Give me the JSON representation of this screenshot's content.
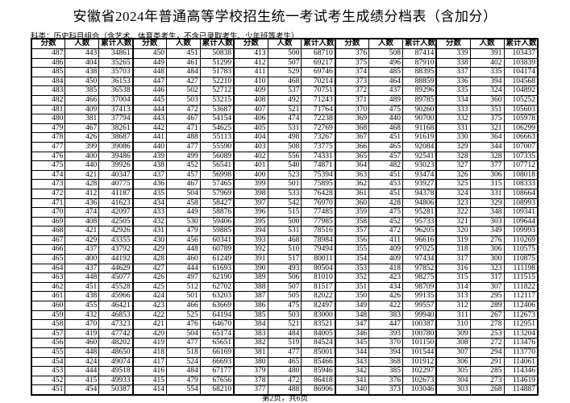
{
  "title": "安徽省2024年普通高等学校招生统一考试考生成绩分档表（含加分）",
  "subtitle": "科类：历史科目组合（含艺术、体育类考生，不含已录取考生、少年班等考生）",
  "headers": [
    "分数",
    "人数",
    "累计人数"
  ],
  "footer": "第2页，共6页",
  "groups": [
    [
      [
        487,
        443,
        34861
      ],
      [
        486,
        404,
        35265
      ],
      [
        485,
        438,
        35703
      ],
      [
        484,
        450,
        36153
      ],
      [
        483,
        385,
        36538
      ],
      [
        482,
        466,
        37004
      ],
      [
        481,
        409,
        37413
      ],
      [
        480,
        381,
        37794
      ],
      [
        479,
        467,
        38261
      ],
      [
        478,
        426,
        38687
      ],
      [
        477,
        399,
        39086
      ],
      [
        476,
        400,
        39486
      ],
      [
        475,
        440,
        39926
      ],
      [
        474,
        421,
        40347
      ],
      [
        473,
        428,
        40775
      ],
      [
        472,
        412,
        41187
      ],
      [
        471,
        436,
        41623
      ],
      [
        470,
        474,
        42097
      ],
      [
        469,
        408,
        42505
      ],
      [
        468,
        421,
        42926
      ],
      [
        467,
        429,
        43355
      ],
      [
        466,
        437,
        43792
      ],
      [
        465,
        400,
        44192
      ],
      [
        464,
        437,
        44629
      ],
      [
        463,
        448,
        45077
      ],
      [
        462,
        451,
        45528
      ],
      [
        461,
        438,
        45966
      ],
      [
        460,
        455,
        46421
      ],
      [
        459,
        432,
        46853
      ],
      [
        458,
        470,
        47323
      ],
      [
        457,
        419,
        47742
      ],
      [
        456,
        460,
        48202
      ],
      [
        455,
        448,
        48650
      ],
      [
        454,
        424,
        49074
      ],
      [
        453,
        444,
        49518
      ],
      [
        452,
        415,
        49933
      ],
      [
        451,
        454,
        50387
      ]
    ],
    [
      [
        450,
        451,
        50838
      ],
      [
        449,
        461,
        51299
      ],
      [
        448,
        484,
        51783
      ],
      [
        447,
        427,
        52210
      ],
      [
        446,
        502,
        52712
      ],
      [
        445,
        503,
        53215
      ],
      [
        444,
        472,
        53687
      ],
      [
        443,
        467,
        54154
      ],
      [
        442,
        471,
        54625
      ],
      [
        441,
        488,
        55113
      ],
      [
        440,
        477,
        55590
      ],
      [
        439,
        499,
        56089
      ],
      [
        438,
        452,
        56541
      ],
      [
        437,
        457,
        56998
      ],
      [
        436,
        467,
        57465
      ],
      [
        435,
        504,
        57969
      ],
      [
        434,
        458,
        58427
      ],
      [
        433,
        449,
        58876
      ],
      [
        432,
        530,
        59406
      ],
      [
        431,
        479,
        59885
      ],
      [
        430,
        456,
        60341
      ],
      [
        429,
        448,
        60789
      ],
      [
        428,
        460,
        61249
      ],
      [
        427,
        444,
        61693
      ],
      [
        426,
        497,
        62190
      ],
      [
        425,
        512,
        62702
      ],
      [
        424,
        501,
        63203
      ],
      [
        423,
        466,
        63669
      ],
      [
        422,
        525,
        64194
      ],
      [
        421,
        476,
        64670
      ],
      [
        420,
        504,
        65174
      ],
      [
        419,
        477,
        65651
      ],
      [
        418,
        518,
        66169
      ],
      [
        417,
        524,
        66693
      ],
      [
        416,
        484,
        67177
      ],
      [
        415,
        479,
        67656
      ],
      [
        414,
        554,
        68210
      ]
    ],
    [
      [
        413,
        500,
        68710
      ],
      [
        412,
        507,
        69217
      ],
      [
        411,
        529,
        69746
      ],
      [
        410,
        468,
        70214
      ],
      [
        409,
        537,
        70751
      ],
      [
        408,
        492,
        71243
      ],
      [
        407,
        521,
        71764
      ],
      [
        406,
        474,
        72238
      ],
      [
        405,
        531,
        72769
      ],
      [
        404,
        498,
        73267
      ],
      [
        403,
        508,
        73775
      ],
      [
        402,
        556,
        74331
      ],
      [
        401,
        540,
        74871
      ],
      [
        400,
        523,
        75394
      ],
      [
        399,
        501,
        75895
      ],
      [
        398,
        533,
        76428
      ],
      [
        397,
        542,
        76970
      ],
      [
        396,
        515,
        77485
      ],
      [
        395,
        500,
        77985
      ],
      [
        394,
        531,
        78516
      ],
      [
        393,
        468,
        78984
      ],
      [
        392,
        510,
        79494
      ],
      [
        391,
        517,
        80011
      ],
      [
        390,
        493,
        80504
      ],
      [
        389,
        506,
        81010
      ],
      [
        388,
        507,
        81517
      ],
      [
        387,
        505,
        82022
      ],
      [
        386,
        475,
        82497
      ],
      [
        385,
        503,
        83000
      ],
      [
        384,
        521,
        83521
      ],
      [
        383,
        484,
        84005
      ],
      [
        382,
        519,
        84524
      ],
      [
        381,
        477,
        85001
      ],
      [
        380,
        465,
        85466
      ],
      [
        379,
        480,
        85946
      ],
      [
        378,
        472,
        86418
      ],
      [
        377,
        488,
        86906
      ]
    ],
    [
      [
        376,
        508,
        87414
      ],
      [
        375,
        496,
        87910
      ],
      [
        374,
        485,
        88395
      ],
      [
        373,
        464,
        88859
      ],
      [
        372,
        437,
        89296
      ],
      [
        371,
        489,
        89785
      ],
      [
        370,
        475,
        90260
      ],
      [
        369,
        440,
        90700
      ],
      [
        368,
        468,
        91168
      ],
      [
        367,
        451,
        91619
      ],
      [
        366,
        465,
        92084
      ],
      [
        365,
        457,
        92541
      ],
      [
        364,
        482,
        93023
      ],
      [
        363,
        451,
        93474
      ],
      [
        362,
        453,
        93927
      ],
      [
        361,
        451,
        94378
      ],
      [
        360,
        428,
        94806
      ],
      [
        359,
        475,
        95281
      ],
      [
        358,
        452,
        95733
      ],
      [
        357,
        472,
        96205
      ],
      [
        356,
        411,
        96616
      ],
      [
        355,
        409,
        97025
      ],
      [
        354,
        409,
        97434
      ],
      [
        353,
        418,
        97852
      ],
      [
        352,
        423,
        98275
      ],
      [
        351,
        434,
        98709
      ],
      [
        350,
        426,
        99135
      ],
      [
        349,
        422,
        99557
      ],
      [
        348,
        383,
        99940
      ],
      [
        347,
        447,
        100387
      ],
      [
        346,
        393,
        100780
      ],
      [
        345,
        370,
        101150
      ],
      [
        344,
        394,
        101544
      ],
      [
        343,
        368,
        101912
      ],
      [
        342,
        385,
        102297
      ],
      [
        341,
        376,
        102673
      ],
      [
        340,
        373,
        103046
      ]
    ],
    [
      [
        339,
        391,
        103437
      ],
      [
        338,
        402,
        103839
      ],
      [
        337,
        335,
        104174
      ],
      [
        336,
        394,
        104568
      ],
      [
        335,
        324,
        104892
      ],
      [
        334,
        360,
        105252
      ],
      [
        333,
        351,
        105603
      ],
      [
        332,
        375,
        105978
      ],
      [
        331,
        321,
        106299
      ],
      [
        330,
        364,
        106663
      ],
      [
        329,
        344,
        107007
      ],
      [
        328,
        328,
        107335
      ],
      [
        327,
        377,
        107712
      ],
      [
        326,
        306,
        108018
      ],
      [
        325,
        315,
        108333
      ],
      [
        324,
        331,
        108664
      ],
      [
        323,
        329,
        108993
      ],
      [
        322,
        348,
        109341
      ],
      [
        321,
        303,
        109644
      ],
      [
        320,
        349,
        109993
      ],
      [
        319,
        276,
        110269
      ],
      [
        318,
        306,
        110575
      ],
      [
        317,
        300,
        110875
      ],
      [
        316,
        323,
        111198
      ],
      [
        315,
        317,
        111515
      ],
      [
        314,
        307,
        111822
      ],
      [
        313,
        295,
        112117
      ],
      [
        312,
        289,
        112406
      ],
      [
        311,
        267,
        112673
      ],
      [
        310,
        278,
        112951
      ],
      [
        309,
        253,
        113204
      ],
      [
        308,
        272,
        113476
      ],
      [
        307,
        294,
        113770
      ],
      [
        306,
        291,
        114061
      ],
      [
        305,
        285,
        114346
      ],
      [
        304,
        273,
        114619
      ],
      [
        303,
        268,
        114887
      ]
    ]
  ]
}
